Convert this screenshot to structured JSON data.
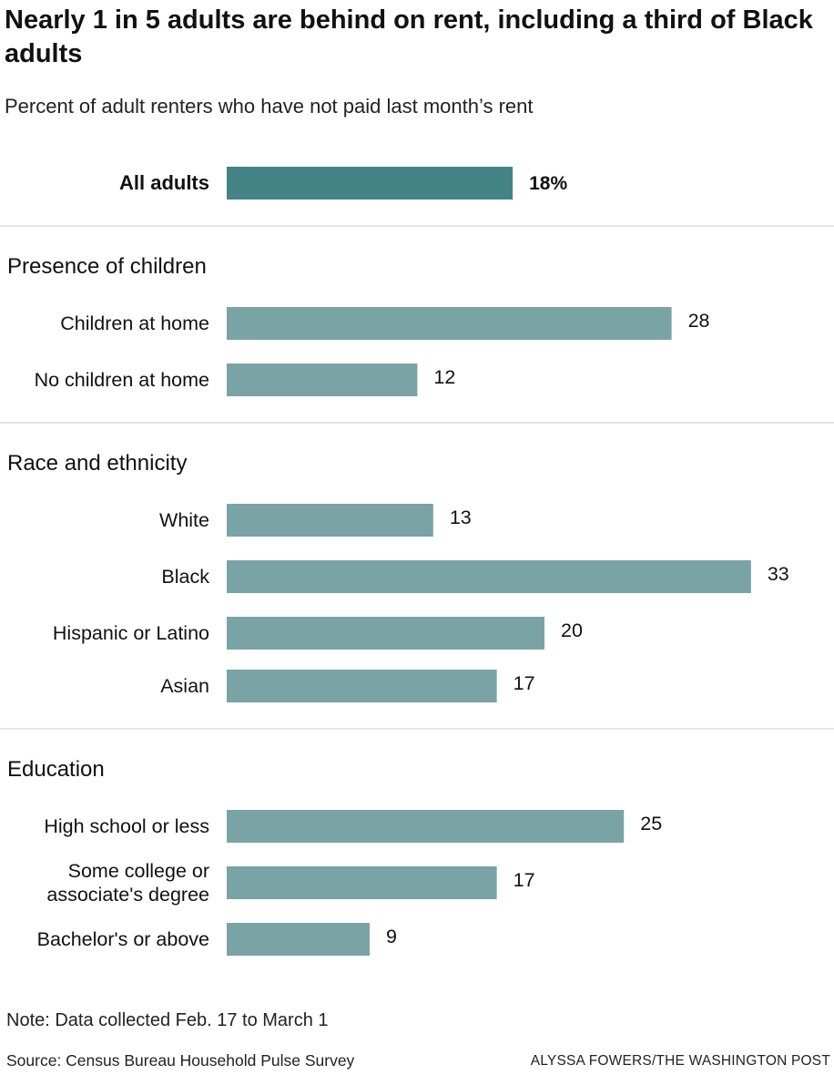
{
  "title": "Nearly 1 in 5 adults are behind on rent, including a third of Black adults",
  "subtitle": "Percent of adult renters who have not paid last month’s rent",
  "note": "Note: Data collected Feb. 17 to March 1",
  "source": "Source: Census Bureau Household Pulse Survey",
  "credit": "ALYSSA FOWERS/THE WASHINGTON POST",
  "colors": {
    "highlight": "#448487",
    "bar": "#7aa3a6",
    "divider": "#e4e4e4"
  },
  "chart_data": {
    "type": "bar",
    "orientation": "horizontal",
    "title": "Nearly 1 in 5 adults are behind on rent, including a third of Black adults",
    "xlabel": "",
    "ylabel": "Percent of adult renters who have not paid last month’s rent",
    "xlim": [
      0,
      35
    ],
    "grid": false,
    "total": {
      "label": "All adults",
      "value": 18,
      "value_label": "18%"
    },
    "groups": [
      {
        "name": "Presence of children",
        "categories": [
          {
            "label": [
              "Children at home"
            ],
            "value": 28
          },
          {
            "label": [
              "No children at home"
            ],
            "value": 12
          }
        ]
      },
      {
        "name": "Race and ethnicity",
        "categories": [
          {
            "label": [
              "White"
            ],
            "value": 13
          },
          {
            "label": [
              "Black"
            ],
            "value": 33
          },
          {
            "label": [
              "Hispanic or Latino"
            ],
            "value": 20
          },
          {
            "label": [
              "Asian"
            ],
            "value": 17
          }
        ]
      },
      {
        "name": "Education",
        "categories": [
          {
            "label": [
              "High school or less"
            ],
            "value": 25
          },
          {
            "label": [
              "Some college or",
              "associate's degree"
            ],
            "value": 17
          },
          {
            "label": [
              "Bachelor's or above"
            ],
            "value": 9
          }
        ]
      }
    ]
  }
}
